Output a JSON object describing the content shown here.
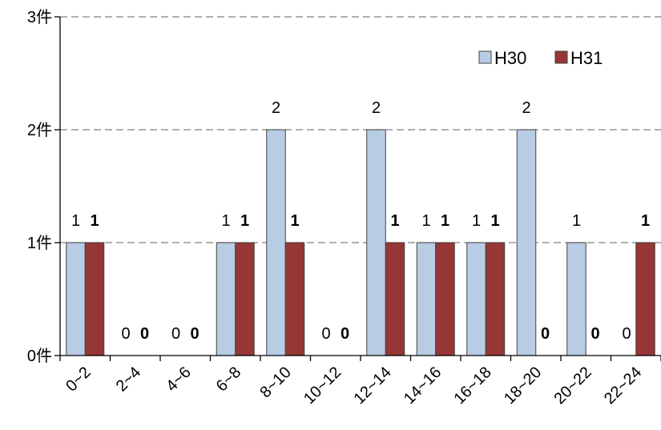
{
  "chart_data": {
    "type": "bar",
    "categories": [
      "0~2",
      "2~4",
      "4~6",
      "6~8",
      "8~10",
      "10~12",
      "12~14",
      "14~16",
      "16~18",
      "18~20",
      "20~22",
      "22~24"
    ],
    "series": [
      {
        "name": "H30",
        "values": [
          1,
          0,
          0,
          1,
          2,
          0,
          2,
          1,
          1,
          2,
          1,
          0
        ],
        "color": "#b8cce4",
        "label_weight": "normal"
      },
      {
        "name": "H31",
        "values": [
          1,
          0,
          0,
          1,
          1,
          0,
          1,
          1,
          1,
          0,
          0,
          1
        ],
        "color": "#953735",
        "label_weight": "bold"
      }
    ],
    "y_ticks": [
      "0件",
      "1件",
      "2件",
      "3件"
    ],
    "ylim": [
      0,
      3
    ],
    "grid": true,
    "legend_position": "top-right"
  }
}
